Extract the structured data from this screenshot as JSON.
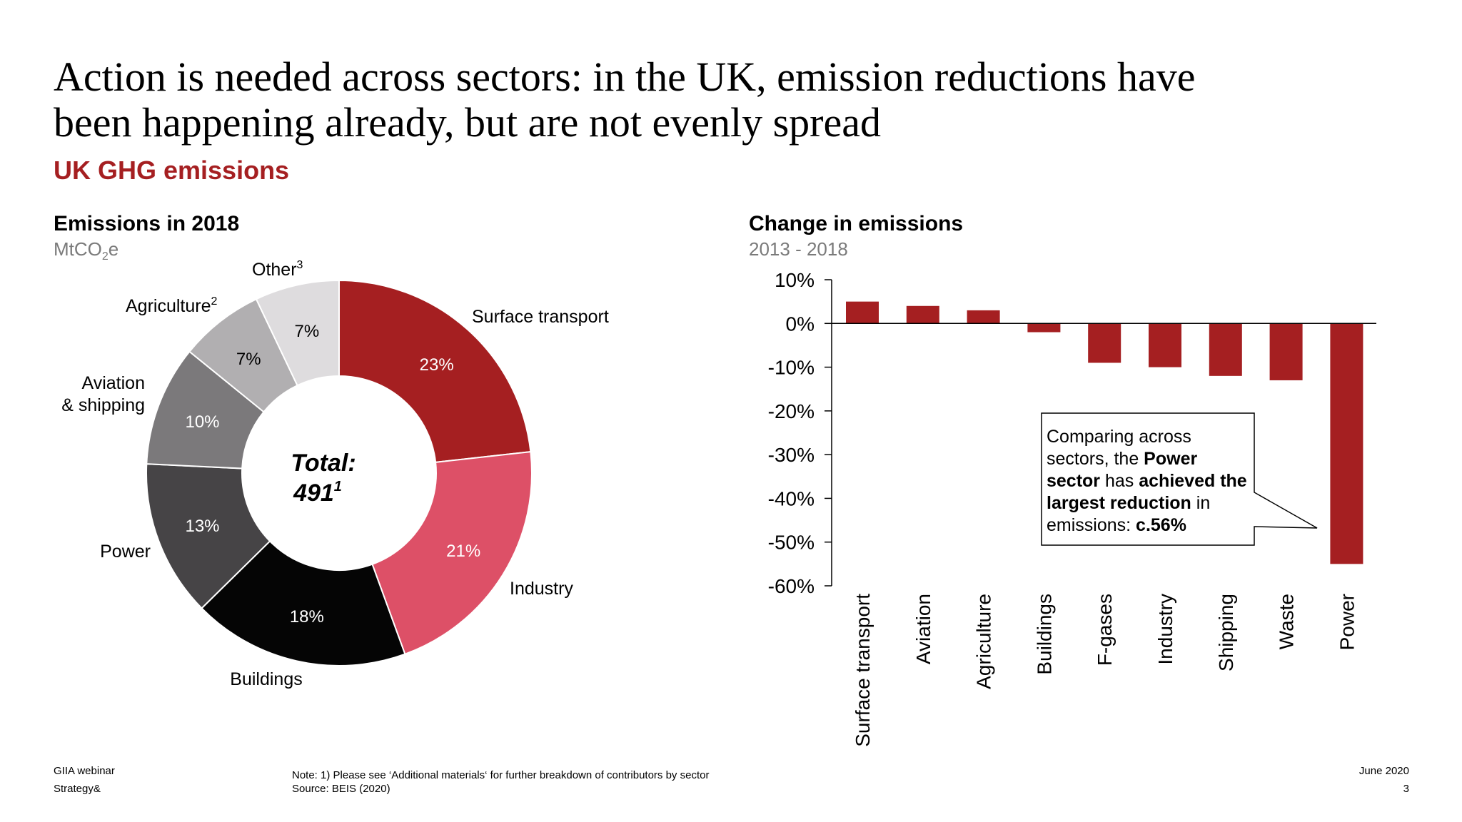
{
  "title_line1": "Action is needed across sectors: in the UK, emission reductions have",
  "title_line2": "been happening already, but are not evenly spread",
  "subtitle": "UK GHG emissions",
  "left_panel": {
    "title": "Emissions in 2018",
    "unit_main": "MtCO",
    "unit_sub": "2",
    "unit_end": "e",
    "total_label": "Total:",
    "total_value": "491",
    "total_sup": "1"
  },
  "right_panel": {
    "title": "Change in emissions",
    "period": "2013 - 2018"
  },
  "callout": {
    "line1": "Comparing across",
    "line2_a": "sectors, the ",
    "line2_b": "Power",
    "line3_a": "sector",
    "line3_b": " has ",
    "line3_c": "achieved the",
    "line4_a": "largest reduction",
    "line4_b": " in",
    "line5_a": "emissions: ",
    "line5_b": "c.56%"
  },
  "footer": {
    "left1": "GIIA webinar",
    "left2": "Strategy&",
    "note": "Note: 1) Please see ‘Additional materials‘ for further breakdown of contributors by sector",
    "source": "Source: BEIS (2020)",
    "date": "June 2020",
    "page": "3"
  },
  "chart_data": [
    {
      "type": "pie",
      "title": "Emissions in 2018",
      "unit": "MtCO2e",
      "slices": [
        {
          "label": "Surface transport",
          "value": 23,
          "value_label": "23%",
          "color": "#a51f21",
          "sup": ""
        },
        {
          "label": "Industry",
          "value": 21,
          "value_label": "21%",
          "color": "#dd5067",
          "sup": ""
        },
        {
          "label": "Buildings",
          "value": 18,
          "value_label": "18%",
          "color": "#050505",
          "sup": ""
        },
        {
          "label": "Power",
          "value": 13,
          "value_label": "13%",
          "color": "#464446",
          "sup": ""
        },
        {
          "label": "Aviation & shipping",
          "value": 10,
          "value_label": "10%",
          "color": "#7b797b",
          "sup": ""
        },
        {
          "label": "Agriculture",
          "value": 7,
          "value_label": "7%",
          "color": "#b1afb1",
          "sup": "2"
        },
        {
          "label": "Other",
          "value": 7,
          "value_label": "7%",
          "color": "#dedcde",
          "sup": "3"
        }
      ]
    },
    {
      "type": "bar",
      "title": "Change in emissions",
      "subtitle": "2013 - 2018",
      "categories": [
        "Surface transport",
        "Aviation",
        "Agriculture",
        "Buildings",
        "F-gases",
        "Industry",
        "Shipping",
        "Waste",
        "Power"
      ],
      "values": [
        5,
        4,
        3,
        -2,
        -9,
        -10,
        -12,
        -13,
        -55
      ],
      "ylim": [
        -60,
        10
      ],
      "yticks": [
        10,
        0,
        -10,
        -20,
        -30,
        -40,
        -50,
        -60
      ],
      "ytick_labels": [
        "10%",
        "0%",
        "-10%",
        "-20%",
        "-30%",
        "-40%",
        "-50%",
        "-60%"
      ],
      "color": "#a51f21"
    }
  ]
}
